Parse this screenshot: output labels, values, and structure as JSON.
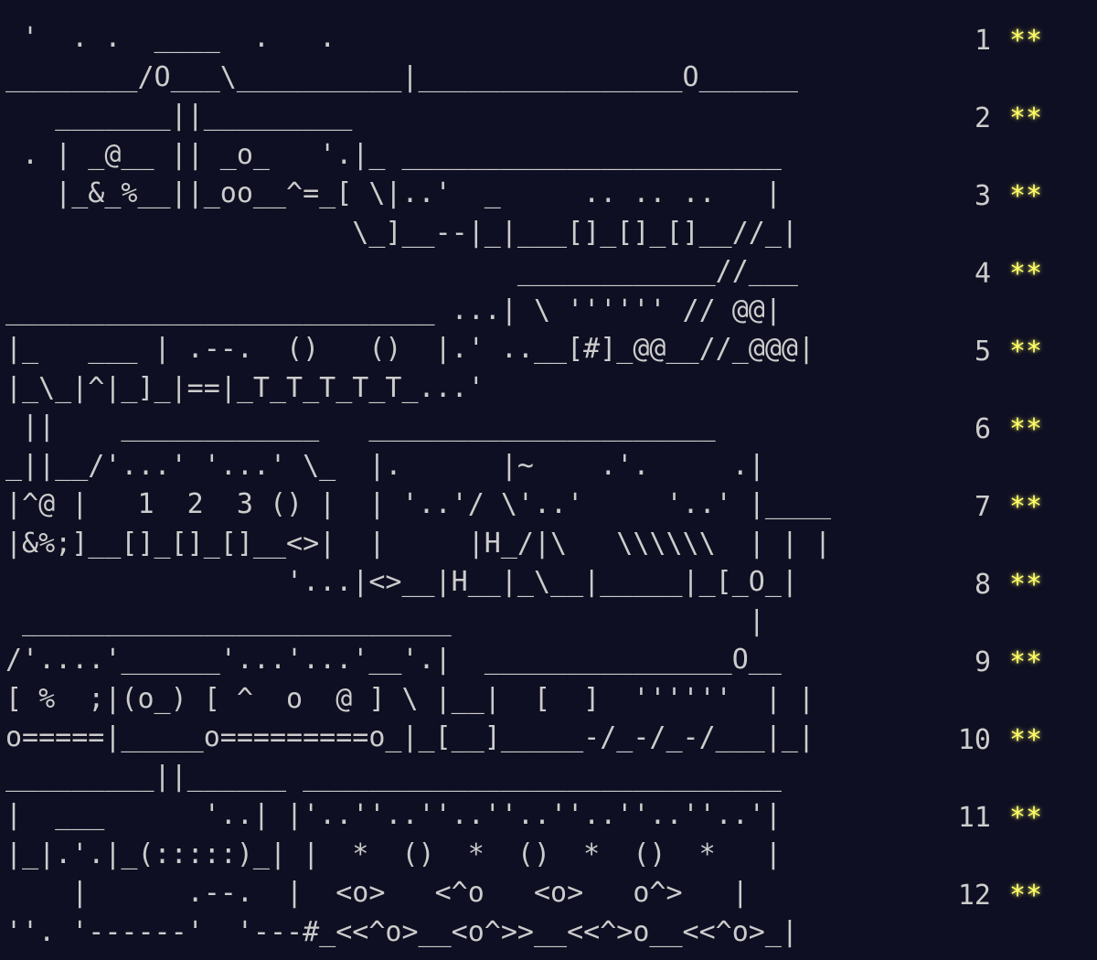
{
  "days": [
    {
      "num": "1",
      "stars": "**"
    },
    {
      "num": "2",
      "stars": "**"
    },
    {
      "num": "3",
      "stars": "**"
    },
    {
      "num": "4",
      "stars": "**"
    },
    {
      "num": "5",
      "stars": "**"
    },
    {
      "num": "6",
      "stars": "**"
    },
    {
      "num": "7",
      "stars": "**"
    },
    {
      "num": "8",
      "stars": "**"
    },
    {
      "num": "9",
      "stars": "**"
    },
    {
      "num": "10",
      "stars": "**"
    },
    {
      "num": "11",
      "stars": "**"
    },
    {
      "num": "12",
      "stars": "**"
    }
  ],
  "art": [
    " '  . .  ____  .   . ",
    "________/O___\\__________|________________O______",
    "   _______||_________",
    " . | _@__ || _o_   '.|_ _______________________",
    "   |_&_%__||_oo__^=_[ \\|..'  _     .. .. ..   |",
    "                     \\_]__--|_|___[]_[]_[]__//_|",
    "                               ____________//___",
    "__________________________ ...| \\ '''''' // @@|",
    "|_   ___ | .--.  ()   ()  |.' ..__[#]_@@__//_@@@|",
    "|_\\_|^|_]_|==|_T_T_T_T_T_...'",
    " ||    ____________   _____________________",
    "_||__/'...' '...' \\_  |.      |~    .'.     .|",
    "|^@ |   1  2  3 () |  | '..'/ \\'..'     '..' |____",
    "|&%;]__[]_[]_[]__<>|  |     |H_/|\\   \\\\\\\\\\\\  | | |",
    "                 '...|<>__|H__|_\\__|_____|_[_O_|",
    " __________________________                  |",
    "/'....'______'...'...'__'.|  _______________O__",
    "[ %  ;|(o_) [ ^  o  @ ] \\ |__|  [  ]  ''''''  | |",
    "o=====|_____o=========o_|_[__]_____-/_-/_-/___|_|",
    "_________||______ _____________________________",
    "|  ___      '..| |'..''..''..''..''..''..''..'|",
    "|_|.'.|_(:::::)_| |  *  ()  *  ()  *  ()  *   |",
    "    |      .--.  |  <o>   <^o   <o>   o^>   |",
    "''. '------'  '---#_<<^o>__<o^>>__<<^>o__<<^o>_|"
  ]
}
